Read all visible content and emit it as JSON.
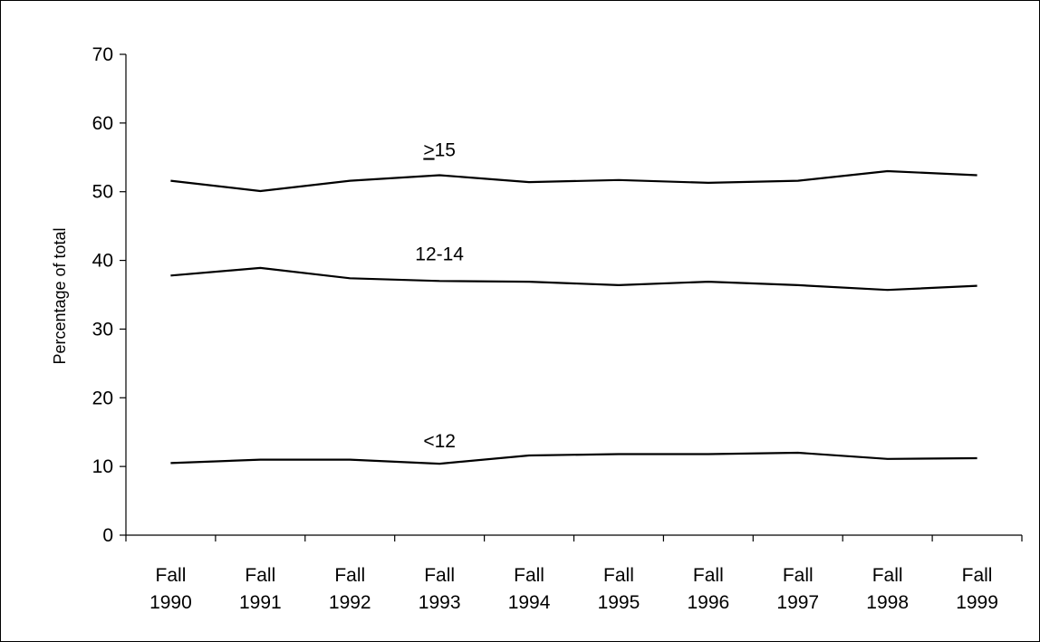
{
  "chart_data": {
    "type": "line",
    "title": "",
    "xlabel": "",
    "ylabel": "Percentage of total",
    "ylim": [
      0,
      70
    ],
    "yticks": [
      "0",
      "10",
      "20",
      "30",
      "40",
      "50",
      "60",
      "70"
    ],
    "grid": false,
    "legend": "inline labels",
    "categories": [
      [
        "Fall",
        "1990"
      ],
      [
        "Fall",
        "1991"
      ],
      [
        "Fall",
        "1992"
      ],
      [
        "Fall",
        "1993"
      ],
      [
        "Fall",
        "1994"
      ],
      [
        "Fall",
        "1995"
      ],
      [
        "Fall",
        "1996"
      ],
      [
        "Fall",
        "1997"
      ],
      [
        "Fall",
        "1998"
      ],
      [
        "Fall",
        "1999"
      ]
    ],
    "series": [
      {
        "name": "15",
        "name_prefix": ">",
        "prefix_underlined": true,
        "values": [
          51.6,
          50.1,
          51.6,
          52.4,
          51.4,
          51.7,
          51.3,
          51.6,
          53.0,
          52.4
        ]
      },
      {
        "name": "12-14",
        "values": [
          37.8,
          38.9,
          37.4,
          37.0,
          36.9,
          36.4,
          36.9,
          36.4,
          35.7,
          36.3
        ]
      },
      {
        "name": "<12",
        "values": [
          10.5,
          11.0,
          11.0,
          10.4,
          11.6,
          11.8,
          11.8,
          12.0,
          11.1,
          11.2
        ]
      }
    ],
    "colors": {
      "line": "#000000",
      "background": "#ffffff"
    }
  }
}
